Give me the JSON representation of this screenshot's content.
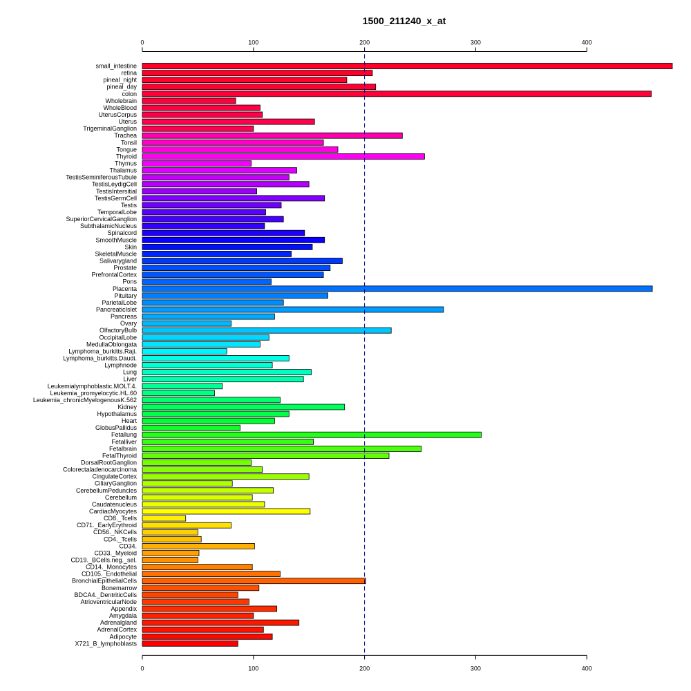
{
  "chart_data": {
    "type": "bar",
    "orientation": "horizontal",
    "title": "1500_211240_x_at",
    "xlim": [
      0,
      480
    ],
    "x_ticks": [
      0,
      100,
      200,
      300,
      400
    ],
    "x_axes": [
      "top",
      "bottom"
    ],
    "reference_line": 200,
    "grid": false,
    "categories": [
      "small_intestine",
      "retina",
      "pineal_night",
      "pineal_day",
      "colon",
      "Wholebrain",
      "WholeBlood",
      "UterusCorpus",
      "Uterus",
      "TrigeminalGanglion",
      "Trachea",
      "Tonsil",
      "Tongue",
      "Thyroid",
      "Thymus",
      "Thalamus",
      "TestisSeminiferousTubule",
      "TestisLeydigCell",
      "TestisIntersitial",
      "TestisGermCell",
      "Testis",
      "TemporalLobe",
      "SuperiorCervicalGanglion",
      "SubthalamicNucleus",
      "Spinalcord",
      "SmoothMuscle",
      "Skin",
      "SkeletalMuscle",
      "Salivarygland",
      "Prostate",
      "PrefrontalCortex",
      "Pons",
      "Placenta",
      "Pituitary",
      "ParietalLobe",
      "PancreaticIslet",
      "Pancreas",
      "Ovary",
      "OlfactoryBulb",
      "OccipitalLobe",
      "MedullaOblongata",
      "Lymphoma_burkitts.Raji.",
      "Lymphoma_burkitts.Daudi.",
      "Lymphnode",
      "Lung",
      "Liver",
      "Leukemialymphoblastic.MOLT.4.",
      "Leukemia_promyelocytic.HL.60",
      "Leukemia_chronicMyelogenousK.562",
      "Kidney",
      "Hypothalamus",
      "Heart",
      "GlobusPallidus",
      "Fetallung",
      "Fetalliver",
      "Fetalbrain",
      "FetalThyroid",
      "DorsalRootGanglion",
      "Colorectaladenocarcinoma",
      "CingulateCortex",
      "CiliaryGanglion",
      "CerebellumPeduncles",
      "Cerebellum",
      "Caudatenucleus",
      "CardiacMyocytes",
      "CD8._Tcells",
      "CD71._EarlyErythroid",
      "CD56._NKCells",
      "CD4._Tcells",
      "CD34.",
      "CD33._Myeloid",
      "CD19._BCells.neg._sel.",
      "CD14._Monocytes",
      "CD105._Endothelial",
      "BronchialEpithelialCells",
      "Bonemarrow",
      "BDCA4._DentriticCells",
      "AtrioventricularNode",
      "Appendix",
      "Amygdala",
      "Adrenalgland",
      "AdrenalCortex",
      "Adipocyte",
      "X721_B_lymphoblasts"
    ],
    "values": [
      477,
      207,
      184,
      210,
      458,
      84,
      106,
      108,
      155,
      100,
      234,
      163,
      176,
      254,
      98,
      139,
      132,
      150,
      103,
      164,
      125,
      111,
      127,
      110,
      146,
      164,
      153,
      134,
      180,
      169,
      163,
      116,
      459,
      167,
      127,
      271,
      119,
      80,
      224,
      114,
      106,
      76,
      132,
      117,
      152,
      145,
      72,
      65,
      124,
      182,
      132,
      119,
      88,
      305,
      154,
      251,
      222,
      98,
      108,
      150,
      81,
      118,
      99,
      110,
      151,
      39,
      80,
      50,
      53,
      101,
      51,
      50,
      99,
      124,
      201,
      105,
      86,
      96,
      121,
      100,
      141,
      109,
      117,
      86
    ],
    "colors": [
      "#ff0026",
      "#ff002a",
      "#ff002f",
      "#ff0034",
      "#ff0039",
      "#ff003e",
      "#ff0043",
      "#ff0048",
      "#ff004d",
      "#ff0052",
      "#ff00ad",
      "#ff00c8",
      "#ff00e0",
      "#ff00f5",
      "#f100ff",
      "#dc00ff",
      "#c700ff",
      "#b200ff",
      "#9b00ff",
      "#8200ff",
      "#6e00ff",
      "#5a00ff",
      "#4600ff",
      "#3200ff",
      "#1e00ff",
      "#0a00ff",
      "#0010ff",
      "#0024ff",
      "#0038ff",
      "#004cff",
      "#0056ff",
      "#0064ff",
      "#0072ff",
      "#0080ff",
      "#008eff",
      "#009cff",
      "#00aaff",
      "#00b8ff",
      "#00c6ff",
      "#00d6ff",
      "#00e6ff",
      "#00f6ff",
      "#00ffe6",
      "#00ffd2",
      "#00ffbe",
      "#00ffaa",
      "#00ff96",
      "#00ff82",
      "#00ff6e",
      "#00ff5a",
      "#00ff46",
      "#00ff32",
      "#10ff22",
      "#24ff1a",
      "#38ff12",
      "#4cff0a",
      "#60ff02",
      "#74ff00",
      "#88ff00",
      "#9cff00",
      "#b0ff00",
      "#c4ff00",
      "#d8ff00",
      "#ecff00",
      "#ffff00",
      "#fff000",
      "#ffe000",
      "#ffd000",
      "#ffc000",
      "#ffb000",
      "#ffa000",
      "#ff9000",
      "#ff8000",
      "#ff7000",
      "#ff6000",
      "#ff5000",
      "#ff4400",
      "#ff3800",
      "#ff2c00",
      "#ff2000",
      "#ff1800",
      "#ff1000",
      "#ff0800",
      "#ff0000"
    ]
  }
}
